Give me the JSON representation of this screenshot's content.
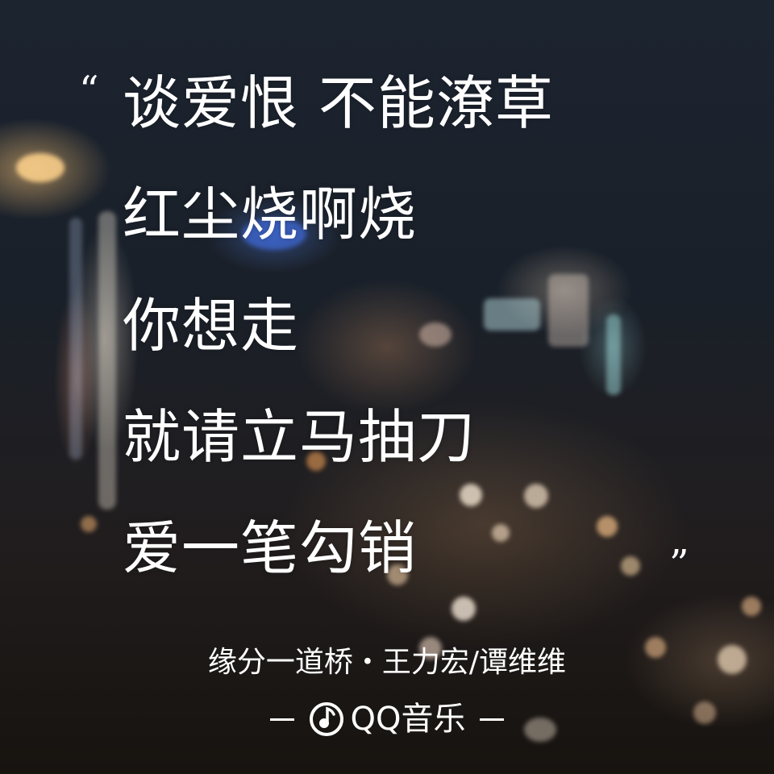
{
  "lyrics": {
    "open_quote": "“",
    "close_quote": "”",
    "lines": [
      "谈爱恨 不能潦草",
      "红尘烧啊烧",
      "你想走",
      "就请立马抽刀",
      "爱一笔勾销"
    ]
  },
  "credit": {
    "text": "缘分一道桥・王力宏/谭维维"
  },
  "brand": {
    "name": "QQ音乐",
    "logo_icon": "qq-music-note-icon",
    "color": "#ffffff"
  }
}
